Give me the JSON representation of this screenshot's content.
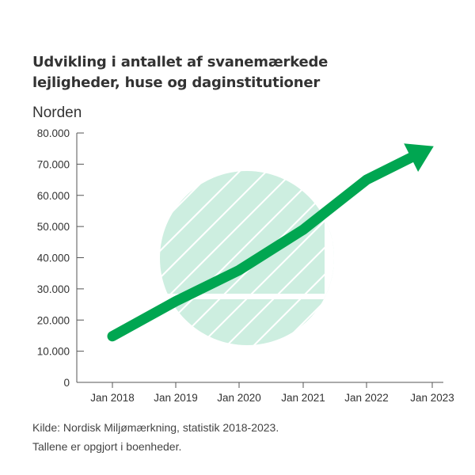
{
  "chart_data": {
    "type": "line",
    "title_lines": [
      "Udvikling i antallet af svanemærkede",
      "lejligheder, huse og daginstitutioner"
    ],
    "subtitle": "Norden",
    "x": [
      "Jan 2018",
      "Jan 2019",
      "Jan 2020",
      "Jan 2021",
      "Jan 2022",
      "Jan 2023"
    ],
    "series": [
      {
        "values": [
          14800,
          26000,
          36000,
          49000,
          65000,
          75500
        ],
        "color": "#00a651"
      }
    ],
    "y_ticks": [
      0,
      10000,
      20000,
      30000,
      40000,
      50000,
      60000,
      70000,
      80000
    ],
    "y_tick_labels": [
      "0",
      "10.000",
      "20.000",
      "30.000",
      "40.000",
      "50.000",
      "60.000",
      "70.000",
      "80.000"
    ],
    "ylim": [
      0,
      80000
    ],
    "line_end": "arrow",
    "grid": false,
    "background_logo": "nordic-swan-ecolabel-logo",
    "background_logo_color": "#cdeee0",
    "axis_color": "#555555"
  },
  "source_lines": [
    "Kilde: Nordisk Miljømærkning, statistik 2018-2023.",
    "Tallene er opgjort i boenheder."
  ]
}
